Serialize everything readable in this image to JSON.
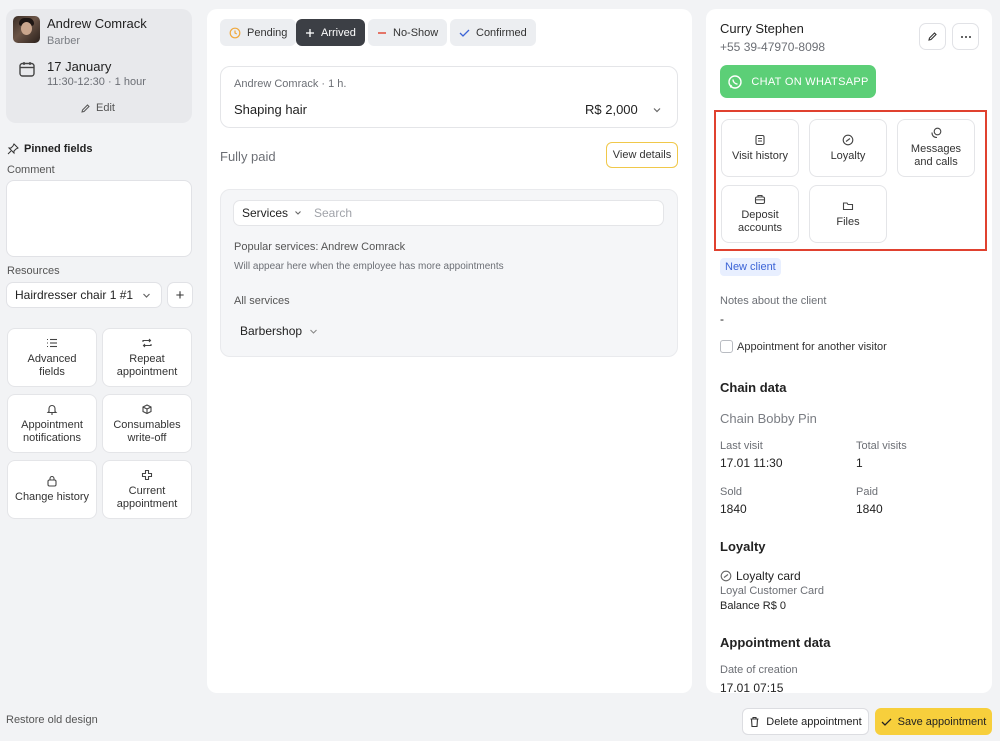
{
  "employee": {
    "name": "Andrew Comrack",
    "role": "Barber",
    "date": "17 January",
    "time": "11:30-12:30 · 1 hour",
    "edit_label": "Edit"
  },
  "left": {
    "pinned_label": "Pinned fields",
    "comment_label": "Comment",
    "resources_label": "Resources",
    "resource_value": "Hairdresser chair 1 #1",
    "tools": [
      {
        "label": "Advanced fields",
        "icon": "list-icon"
      },
      {
        "label": "Repeat appointment",
        "icon": "repeat-icon"
      },
      {
        "label": "Appointment notifications",
        "icon": "bell-icon"
      },
      {
        "label": "Consumables write-off",
        "icon": "cube-icon"
      },
      {
        "label": "Change history",
        "icon": "lock-icon"
      },
      {
        "label": "Current appointment",
        "icon": "plus-icon"
      }
    ],
    "restore_label": "Restore old design"
  },
  "statuses": [
    {
      "label": "Pending",
      "color": "#f0a83c"
    },
    {
      "label": "Arrived",
      "color": "#ffffff"
    },
    {
      "label": "No-Show",
      "color": "#e0412f"
    },
    {
      "label": "Confirmed",
      "color": "#3b63d6"
    }
  ],
  "service": {
    "meta": "Andrew Comrack · 1 h.",
    "name": "Shaping hair",
    "price": "R$ 2,000"
  },
  "payment": {
    "status": "Fully paid",
    "view_details": "View details"
  },
  "services_panel": {
    "category": "Services",
    "search_placeholder": "Search",
    "popular_title": "Popular services: Andrew Comrack",
    "popular_hint": "Will appear here when the employee has more appointments",
    "all_title": "All services",
    "group": "Barbershop"
  },
  "client": {
    "name": "Curry Stephen",
    "phone": "+55 39-47970-8098",
    "whatsapp_label": "CHAT ON WHATSAPP",
    "tiles": [
      {
        "label": "Visit history",
        "icon": "history-icon"
      },
      {
        "label": "Loyalty",
        "icon": "loyalty-icon"
      },
      {
        "label": "Messages and calls",
        "icon": "messages-icon"
      },
      {
        "label": "Deposit accounts",
        "icon": "wallet-icon"
      },
      {
        "label": "Files",
        "icon": "folder-icon"
      }
    ],
    "badge": "New client",
    "notes_label": "Notes about the client",
    "notes_value": "-",
    "another_visitor": "Appointment for another visitor"
  },
  "chain": {
    "heading": "Chain data",
    "name": "Chain Bobby Pin",
    "last_visit_label": "Last visit",
    "last_visit": "17.01 11:30",
    "total_visits_label": "Total visits",
    "total_visits": "1",
    "sold_label": "Sold",
    "sold": "1840",
    "paid_label": "Paid",
    "paid": "1840"
  },
  "loyalty": {
    "heading": "Loyalty",
    "card": "Loyalty card",
    "card_name": "Loyal Customer Card",
    "balance": "Balance R$ 0"
  },
  "appointment_data": {
    "heading": "Appointment data",
    "created_label": "Date of creation",
    "created": "17.01 07:15"
  },
  "actions": {
    "delete": "Delete appointment",
    "save": "Save appointment"
  }
}
